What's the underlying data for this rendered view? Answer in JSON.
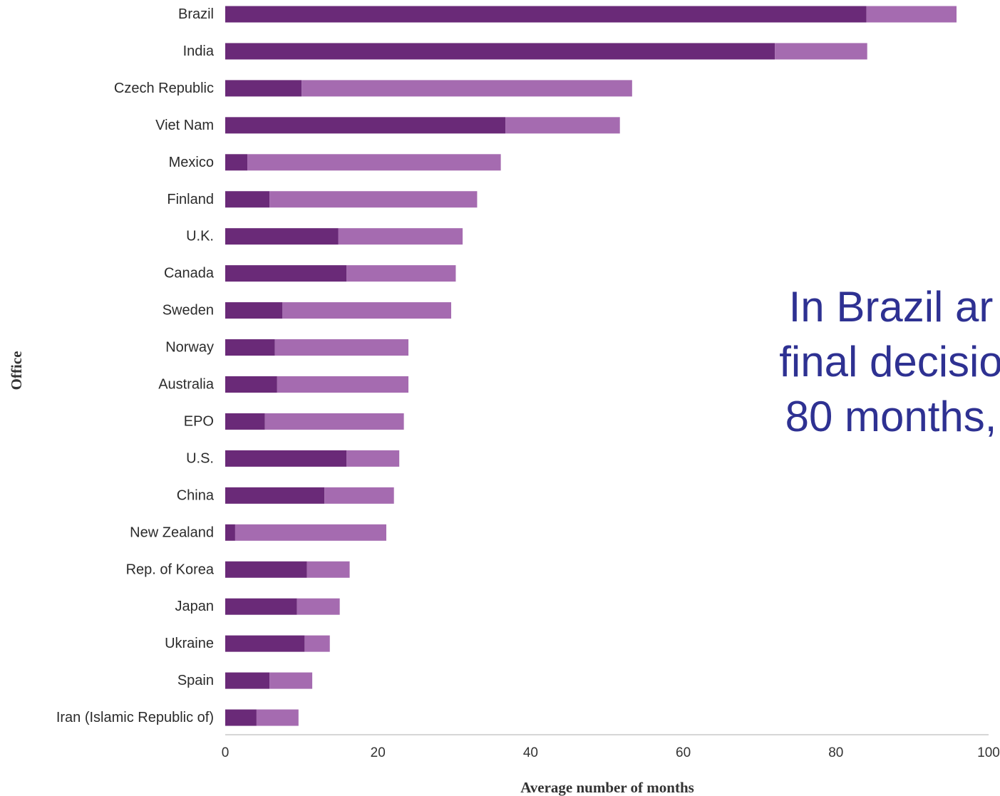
{
  "chart_data": {
    "type": "bar",
    "orientation": "horizontal",
    "stacked": true,
    "categories": [
      "Brazil",
      "India",
      "Czech Republic",
      "Viet Nam",
      "Mexico",
      "Finland",
      "U.K.",
      "Canada",
      "Sweden",
      "Norway",
      "Australia",
      "EPO",
      "U.S.",
      "China",
      "New Zealand",
      "Rep. of Korea",
      "Japan",
      "Ukraine",
      "Spain",
      "Iran (Islamic Republic of)"
    ],
    "series": [
      {
        "values": [
          84,
          72,
          10,
          36.7,
          2.9,
          5.8,
          14.8,
          15.9,
          7.5,
          6.5,
          6.8,
          5.2,
          15.9,
          13,
          1.3,
          10.7,
          9.4,
          10.4,
          5.8,
          4.1
        ],
        "color": "#6a2a78"
      },
      {
        "values": [
          11.8,
          12.1,
          43.3,
          15,
          33.2,
          27.2,
          16.3,
          14.3,
          22.1,
          17.5,
          17.2,
          18.2,
          6.9,
          9.1,
          19.8,
          5.6,
          5.6,
          3.3,
          5.6,
          5.5
        ],
        "color": "#a56bb0"
      }
    ],
    "xlabel": "Average number of months",
    "ylabel": "Office",
    "xlim": [
      0,
      100
    ],
    "xticks": [
      0,
      20,
      40,
      60,
      80,
      100
    ],
    "grid": false,
    "legend": false
  },
  "annotation": {
    "lines": [
      "In Brazil ar",
      "final decisio",
      "80 months,"
    ],
    "color": "#2e3192"
  }
}
